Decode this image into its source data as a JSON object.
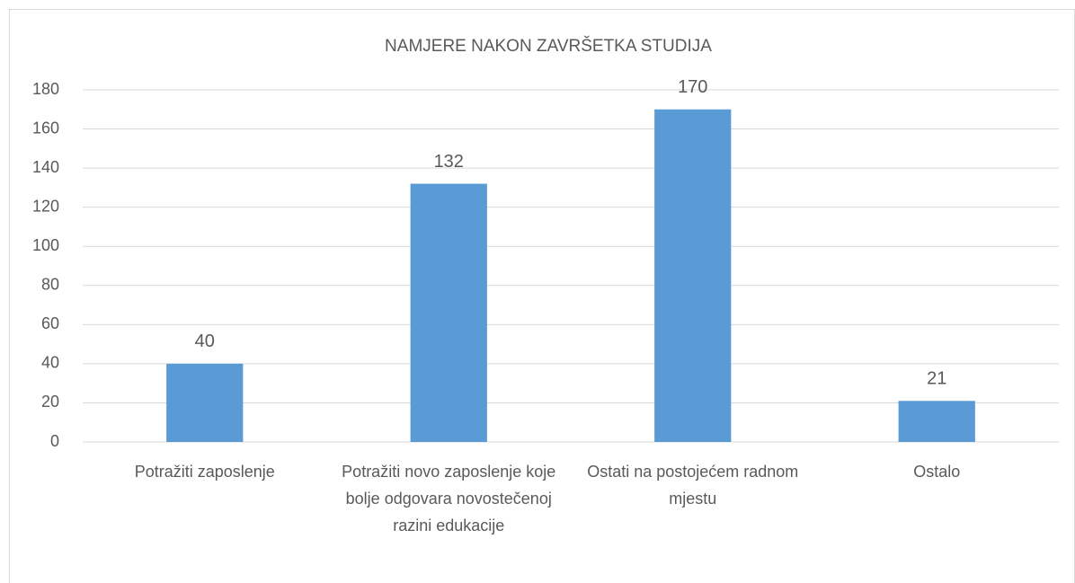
{
  "chart_data": {
    "type": "bar",
    "title": "NAMJERE NAKON ZAVRŠETKA STUDIJA",
    "categories": [
      "Potražiti zaposlenje",
      "Potražiti novo zaposlenje koje bolje odgovara novostečenoj razini edukacije",
      "Ostati na postojećem radnom mjestu",
      "Ostalo"
    ],
    "values": [
      40,
      132,
      170,
      21
    ],
    "color": "#5b9bd5",
    "ylim": [
      0,
      180
    ],
    "yticks": [
      0,
      20,
      40,
      60,
      80,
      100,
      120,
      140,
      160,
      180
    ],
    "grid": true
  }
}
